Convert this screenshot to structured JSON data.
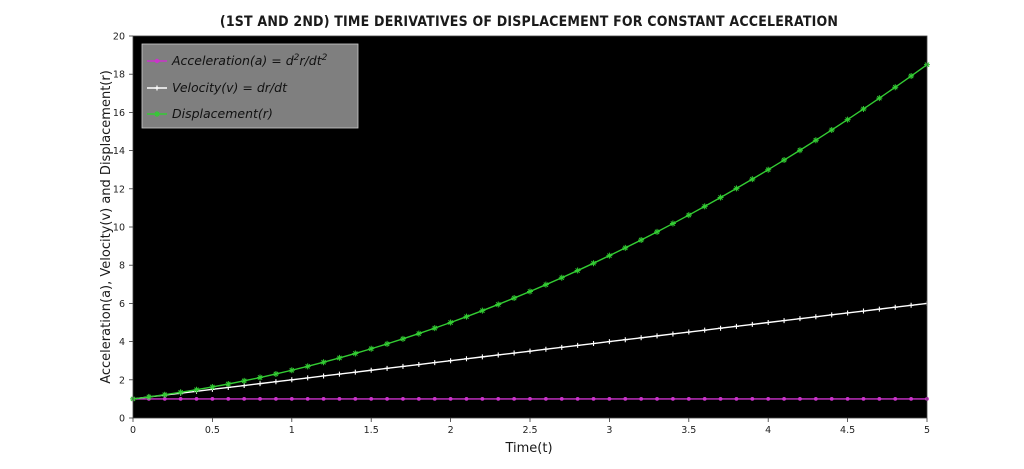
{
  "chart_data": {
    "type": "line",
    "title": "(1ST AND 2ND) TIME DERIVATIVES OF DISPLACEMENT FOR CONSTANT ACCELERATION",
    "xlabel": "Time(t)",
    "ylabel": "Acceleration(a), Velocity(v) and Displacement(r)",
    "xlim": [
      0,
      5
    ],
    "ylim": [
      0,
      20
    ],
    "xticks": [
      "0",
      "0.5",
      "1",
      "1.5",
      "2",
      "2.5",
      "3",
      "3.5",
      "4",
      "4.5",
      "5"
    ],
    "yticks": [
      "0",
      "2",
      "4",
      "6",
      "8",
      "10",
      "12",
      "14",
      "16",
      "18",
      "20"
    ],
    "x": [
      0,
      0.1,
      0.2,
      0.3,
      0.4,
      0.5,
      0.6,
      0.7,
      0.8,
      0.9,
      1,
      1.1,
      1.2,
      1.3,
      1.4,
      1.5,
      1.6,
      1.7,
      1.8,
      1.9,
      2,
      2.1,
      2.2,
      2.3,
      2.4,
      2.5,
      2.6,
      2.7,
      2.8,
      2.9,
      3,
      3.1,
      3.2,
      3.3,
      3.4,
      3.5,
      3.6,
      3.7,
      3.8,
      3.9,
      4,
      4.1,
      4.2,
      4.3,
      4.4,
      4.5,
      4.6,
      4.7,
      4.8,
      4.9,
      5
    ],
    "series": [
      {
        "name": "Acceleration(a) = d²r/dt²",
        "color": "#cc33cc",
        "marker": "point",
        "values": [
          1,
          1,
          1,
          1,
          1,
          1,
          1,
          1,
          1,
          1,
          1,
          1,
          1,
          1,
          1,
          1,
          1,
          1,
          1,
          1,
          1,
          1,
          1,
          1,
          1,
          1,
          1,
          1,
          1,
          1,
          1,
          1,
          1,
          1,
          1,
          1,
          1,
          1,
          1,
          1,
          1,
          1,
          1,
          1,
          1,
          1,
          1,
          1,
          1,
          1,
          1
        ]
      },
      {
        "name": "Velocity(v) = dr/dt",
        "color": "#ffffff",
        "marker": "plus",
        "values": [
          1,
          1.1,
          1.2,
          1.3,
          1.4,
          1.5,
          1.6,
          1.7,
          1.8,
          1.9,
          2,
          2.1,
          2.2,
          2.3,
          2.4,
          2.5,
          2.6,
          2.7,
          2.8,
          2.9,
          3,
          3.1,
          3.2,
          3.3,
          3.4,
          3.5,
          3.6,
          3.7,
          3.8,
          3.9,
          4,
          4.1,
          4.2,
          4.3,
          4.4,
          4.5,
          4.6,
          4.7,
          4.8,
          4.9,
          5,
          5.1,
          5.2,
          5.3,
          5.4,
          5.5,
          5.6,
          5.7,
          5.8,
          5.9,
          6
        ]
      },
      {
        "name": "Displacement(r)",
        "color": "#33cc33",
        "marker": "star",
        "values": [
          1,
          1.105,
          1.22,
          1.345,
          1.48,
          1.625,
          1.78,
          1.945,
          2.12,
          2.305,
          2.5,
          2.705,
          2.92,
          3.145,
          3.38,
          3.625,
          3.88,
          4.145,
          4.42,
          4.705,
          5,
          5.305,
          5.62,
          5.945,
          6.28,
          6.625,
          6.98,
          7.345,
          7.72,
          8.105,
          8.5,
          8.905,
          9.32,
          9.745,
          10.18,
          10.625,
          11.08,
          11.545,
          12.02,
          12.505,
          13,
          13.505,
          14.02,
          14.545,
          15.08,
          15.625,
          16.18,
          16.745,
          17.32,
          17.905,
          18.5
        ]
      }
    ],
    "legend": {
      "placement": "top-left",
      "entries": [
        {
          "prefix": "Acceleration(a) = d",
          "sup1": "2",
          "mid": "r/dt",
          "sup2": "2"
        },
        {
          "text": "Velocity(v) = dr/dt"
        },
        {
          "text": "Displacement(r)"
        }
      ]
    },
    "grid": false,
    "plot_background": "#000000",
    "legend_background": "#7f7f7f"
  }
}
